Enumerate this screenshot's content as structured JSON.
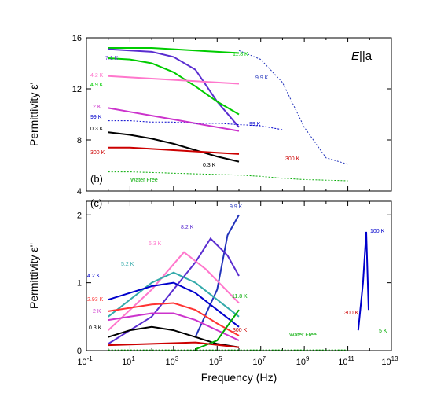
{
  "chart_data": [
    {
      "panel": "(b)",
      "type": "line",
      "ylabel": "Permittivity ε'",
      "xlabel": "",
      "x_scale": "log",
      "xlim": [
        0.1,
        10000000000000
      ],
      "ylim": [
        4,
        16
      ],
      "yticks": [
        4,
        8,
        12,
        16
      ],
      "ytick_labels": [
        "4",
        "8",
        "12",
        "16"
      ],
      "corner_label": "E||a",
      "series": [
        {
          "name": "11.8 K",
          "color": "#00cc00",
          "x": [
            1,
            10,
            100,
            1000,
            10000,
            100000,
            1000000
          ],
          "y": [
            15.2,
            15.2,
            15.2,
            15.1,
            15.0,
            14.9,
            14.8
          ]
        },
        {
          "name": "7.1 K",
          "color": "#5a2dd0",
          "x": [
            1,
            10,
            100,
            1000,
            10000,
            100000,
            1000000
          ],
          "y": [
            15.1,
            15.0,
            14.9,
            14.5,
            13.5,
            11.0,
            9.0
          ]
        },
        {
          "name": "4.9 K",
          "color": "#00cc00",
          "x": [
            1,
            10,
            100,
            1000,
            10000,
            100000,
            1000000
          ],
          "y": [
            14.4,
            14.3,
            14.0,
            13.3,
            12.2,
            11.0,
            10.0
          ]
        },
        {
          "name": "4.2 K",
          "color": "#ff77cc",
          "x": [
            1,
            10,
            100,
            1000,
            10000,
            100000,
            1000000
          ],
          "y": [
            13.0,
            12.9,
            12.8,
            12.7,
            12.6,
            12.5,
            12.4
          ]
        },
        {
          "name": "2 K",
          "color": "#cc33cc",
          "x": [
            1,
            10,
            100,
            1000,
            10000,
            100000,
            1000000
          ],
          "y": [
            10.5,
            10.2,
            9.9,
            9.6,
            9.3,
            9.0,
            8.7
          ]
        },
        {
          "name": "99 K",
          "color": "#0000cc",
          "x": [
            1,
            10,
            100,
            1000,
            10000,
            100000,
            1000000,
            10000000,
            100000000
          ],
          "y": [
            9.5,
            9.5,
            9.4,
            9.4,
            9.3,
            9.3,
            9.2,
            9.1,
            8.8
          ]
        },
        {
          "name": "0.3 K",
          "color": "#000000",
          "x": [
            1,
            10,
            100,
            1000,
            10000,
            100000,
            1000000
          ],
          "y": [
            8.6,
            8.4,
            8.1,
            7.7,
            7.2,
            6.7,
            6.3
          ]
        },
        {
          "name": "300 K",
          "color": "#cc0000",
          "x": [
            1,
            10,
            100,
            1000,
            10000,
            100000,
            1000000
          ],
          "y": [
            7.4,
            7.4,
            7.3,
            7.2,
            7.1,
            7.0,
            6.9
          ]
        },
        {
          "name": "9.9 K",
          "color": "#2233bb",
          "x": [
            1000000,
            10000000,
            100000000,
            1000000000,
            10000000000,
            100000000000
          ],
          "y": [
            15.0,
            14.3,
            12.5,
            9.0,
            6.6,
            6.1
          ]
        },
        {
          "name": "Water Free",
          "color": "#00aa00",
          "x": [
            1,
            10,
            100,
            1000,
            10000,
            100000,
            1000000,
            10000000,
            100000000,
            1000000000,
            10000000000,
            100000000000
          ],
          "y": [
            5.5,
            5.5,
            5.45,
            5.4,
            5.35,
            5.3,
            5.25,
            5.15,
            5.0,
            4.9,
            4.85,
            4.8
          ]
        }
      ],
      "annotations": [
        "11.8 K",
        "7.1 K",
        "4.9 K",
        "4.2 K",
        "2 K",
        "99 K",
        "0.3 K",
        "300 K",
        "9.9 K",
        "99 K",
        "300 K",
        "0.3 K",
        "Water Free"
      ]
    },
    {
      "panel": "(c)",
      "type": "line",
      "ylabel": "Permittivity ε''",
      "xlabel": "Frequency (Hz)",
      "x_scale": "log",
      "xlim": [
        0.1,
        10000000000000
      ],
      "ylim": [
        0,
        2.2
      ],
      "yticks": [
        0,
        1,
        2
      ],
      "ytick_labels": [
        "0",
        "1",
        "2"
      ],
      "xticks": [
        0.1,
        10,
        1000,
        100000,
        10000000,
        1000000000,
        100000000000,
        10000000000000
      ],
      "xtick_labels": [
        [
          "10",
          "-1"
        ],
        [
          "10",
          "1"
        ],
        [
          "10",
          "3"
        ],
        [
          "10",
          "5"
        ],
        [
          "10",
          "7"
        ],
        [
          "10",
          "9"
        ],
        [
          "10",
          "11"
        ],
        [
          "10",
          "13"
        ]
      ],
      "series": [
        {
          "name": "9.9 K",
          "color": "#2233bb",
          "x": [
            10000,
            100000,
            300000,
            1000000
          ],
          "y": [
            0.2,
            0.9,
            1.7,
            2.0
          ]
        },
        {
          "name": "8.2 K",
          "color": "#5a2dd0",
          "x": [
            1,
            100,
            10000,
            50000,
            300000,
            1000000
          ],
          "y": [
            0.1,
            0.5,
            1.3,
            1.65,
            1.4,
            1.1
          ]
        },
        {
          "name": "6.3 K",
          "color": "#ff77cc",
          "x": [
            1,
            100,
            3000,
            30000,
            1000000
          ],
          "y": [
            0.3,
            0.9,
            1.45,
            1.2,
            0.7
          ]
        },
        {
          "name": "5.2 K",
          "color": "#33aaaa",
          "x": [
            1,
            100,
            1000,
            10000,
            1000000
          ],
          "y": [
            0.5,
            1.0,
            1.15,
            1.0,
            0.5
          ]
        },
        {
          "name": "4.2 K",
          "color": "#0000cc",
          "x": [
            1,
            10,
            100,
            1000,
            10000,
            100000,
            1000000
          ],
          "y": [
            0.75,
            0.85,
            0.95,
            1.0,
            0.85,
            0.6,
            0.35
          ]
        },
        {
          "name": "2.93 K",
          "color": "#ff3333",
          "x": [
            1,
            10,
            100,
            1000,
            10000,
            100000,
            1000000
          ],
          "y": [
            0.58,
            0.63,
            0.68,
            0.7,
            0.6,
            0.4,
            0.22
          ]
        },
        {
          "name": "2 K",
          "color": "#cc33cc",
          "x": [
            1,
            10,
            100,
            1000,
            10000,
            100000,
            1000000
          ],
          "y": [
            0.45,
            0.5,
            0.55,
            0.55,
            0.45,
            0.3,
            0.15
          ]
        },
        {
          "name": "0.3 K",
          "color": "#000000",
          "x": [
            1,
            10,
            100,
            1000,
            10000,
            100000,
            1000000
          ],
          "y": [
            0.2,
            0.3,
            0.35,
            0.3,
            0.2,
            0.1,
            0.05
          ]
        },
        {
          "name": "11.8 K",
          "color": "#00aa00",
          "x": [
            10000,
            100000,
            1000000
          ],
          "y": [
            0.02,
            0.15,
            0.6
          ]
        },
        {
          "name": "300 K",
          "color": "#cc0000",
          "x": [
            1,
            100,
            10000,
            1000000
          ],
          "y": [
            0.08,
            0.1,
            0.12,
            0.05
          ]
        },
        {
          "name": "100 K",
          "color": "#0000cc",
          "x": [
            300000000000,
            500000000000,
            700000000000,
            900000000000
          ],
          "y": [
            0.3,
            1.0,
            1.75,
            0.6
          ]
        },
        {
          "name": "Water Free",
          "color": "#00aa00",
          "x": [
            1,
            10,
            100,
            1000,
            10000,
            100000,
            1000000,
            10000000,
            100000000,
            1000000000,
            10000000000,
            100000000000
          ],
          "y": [
            0.01,
            0.01,
            0.01,
            0.01,
            0.01,
            0.01,
            0.01,
            0.01,
            0.01,
            0.01,
            0.01,
            0.01
          ]
        }
      ],
      "annotations": [
        "9.9 K",
        "8.2 K",
        "6.3 K",
        "5.2 K",
        "4.2 K",
        "2.93 K",
        "2 K",
        "0.3 K",
        "11.8 K",
        "300 K",
        "100 K",
        "300 K",
        "Water Free",
        "5 K"
      ]
    }
  ]
}
